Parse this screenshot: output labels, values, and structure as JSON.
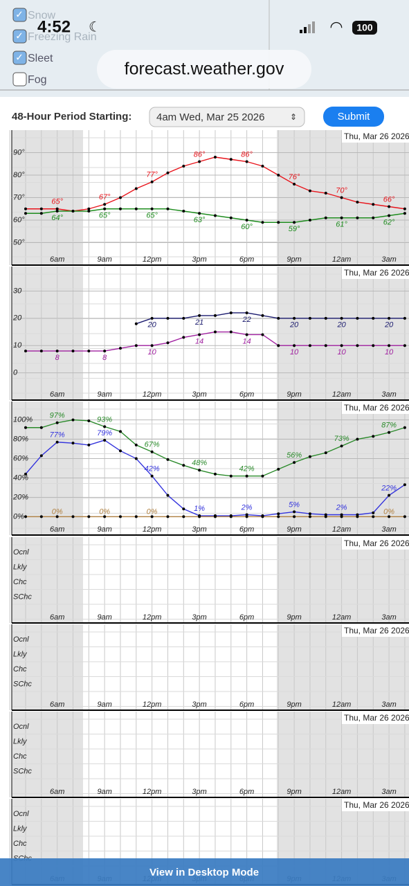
{
  "status_bar": {
    "time": "4:52",
    "battery": "100"
  },
  "address_bar": {
    "url": "forecast.weather.gov"
  },
  "checkboxes": [
    {
      "label": "Snow",
      "checked": true
    },
    {
      "label": "Freezing Rain",
      "checked": true
    },
    {
      "label": "Sleet",
      "checked": true
    },
    {
      "label": "Fog",
      "checked": false
    }
  ],
  "form": {
    "label": "48-Hour Period Starting:",
    "select": "4am Wed, Mar 25 2026",
    "button": "Submit"
  },
  "time_axis": {
    "header": "Thu, Mar 26 2026",
    "categories": [
      null,
      null,
      "6am",
      null,
      null,
      "9am",
      null,
      null,
      "12pm",
      null,
      null,
      "3pm",
      null,
      null,
      "6pm",
      null,
      null,
      "9pm",
      null,
      null,
      "12am",
      null,
      null,
      "3am",
      null
    ]
  },
  "panels": [
    {
      "type": "line",
      "ylim": [
        40,
        100
      ],
      "yticks": [
        {
          "value": 50,
          "label": "50°"
        },
        {
          "value": 60,
          "label": "60°"
        },
        {
          "value": 70,
          "label": "70°"
        },
        {
          "value": 80,
          "label": "80°"
        },
        {
          "value": 90,
          "label": "90°"
        }
      ],
      "series": [
        {
          "color": "#e8141b",
          "values": [
            65,
            65,
            65,
            64,
            65,
            67,
            70,
            74,
            77,
            81,
            84,
            86,
            88,
            87,
            86,
            84,
            80,
            76,
            73,
            72,
            70,
            68,
            67,
            66,
            65
          ],
          "value_labels": [
            null,
            null,
            "65°",
            null,
            null,
            "67°",
            null,
            null,
            "77°",
            null,
            null,
            "86°",
            null,
            null,
            "86°",
            null,
            null,
            "76°",
            null,
            null,
            "70°",
            null,
            null,
            "66°",
            null
          ]
        },
        {
          "color": "#1e8c1e",
          "values": [
            63,
            63,
            64,
            64,
            64,
            65,
            65,
            65,
            65,
            65,
            64,
            63,
            62,
            61,
            60,
            59,
            59,
            59,
            60,
            61,
            61,
            61,
            61,
            62,
            63
          ],
          "value_labels": [
            null,
            null,
            "64°",
            null,
            null,
            "65°",
            null,
            null,
            "65°",
            null,
            null,
            "63°",
            null,
            null,
            "60°",
            null,
            null,
            "59°",
            null,
            null,
            "61°",
            null,
            null,
            "62°",
            null
          ]
        }
      ]
    },
    {
      "type": "line",
      "ylim": [
        -10,
        39
      ],
      "yticks": [
        0,
        10,
        20,
        30
      ],
      "series": [
        {
          "color": "#1a1a6e",
          "values": [
            null,
            null,
            null,
            null,
            null,
            null,
            null,
            18,
            20,
            20,
            20,
            21,
            21,
            22,
            22,
            21,
            20,
            20,
            20,
            20,
            20,
            20,
            20,
            20,
            20
          ]
        },
        {
          "color": "#a020a0",
          "values": [
            8,
            8,
            8,
            8,
            8,
            8,
            9,
            10,
            10,
            11,
            13,
            14,
            15,
            15,
            14,
            14,
            10,
            10,
            10,
            10,
            10,
            10,
            10,
            10,
            10
          ]
        }
      ]
    },
    {
      "type": "line",
      "ylim": [
        -19,
        119
      ],
      "yticks": [
        {
          "value": 0,
          "label": "0%"
        },
        {
          "value": 20,
          "label": "20%"
        },
        {
          "value": 40,
          "label": "40%"
        },
        {
          "value": 60,
          "label": "60%"
        },
        {
          "value": 80,
          "label": "80%"
        },
        {
          "value": 100,
          "label": "100%"
        }
      ],
      "series": [
        {
          "color": "#2a8a2a",
          "values": [
            92,
            92,
            97,
            100,
            99,
            93,
            88,
            74,
            67,
            59,
            53,
            48,
            44,
            42,
            42,
            42,
            49,
            56,
            62,
            66,
            73,
            80,
            83,
            87,
            92
          ],
          "value_labels": [
            null,
            null,
            "97%",
            null,
            null,
            "93%",
            null,
            null,
            "67%",
            null,
            null,
            "48%",
            null,
            null,
            "42%",
            null,
            null,
            "56%",
            null,
            null,
            "73%",
            null,
            null,
            "87%",
            null
          ]
        },
        {
          "color": "#3333dd",
          "values": [
            44,
            63,
            77,
            76,
            74,
            79,
            68,
            60,
            42,
            22,
            8,
            1,
            1,
            1,
            2,
            1,
            3,
            5,
            3,
            2,
            2,
            2,
            4,
            22,
            33
          ],
          "value_labels": [
            null,
            null,
            "77%",
            null,
            null,
            "79%",
            null,
            null,
            "42%",
            null,
            null,
            "1%",
            null,
            null,
            "2%",
            null,
            null,
            "5%",
            null,
            null,
            "2%",
            null,
            null,
            "22%",
            null
          ]
        },
        {
          "color": "#b08040",
          "values": [
            0,
            0,
            0,
            0,
            0,
            0,
            0,
            0,
            0,
            0,
            0,
            0,
            0,
            0,
            0,
            0,
            0,
            0,
            0,
            0,
            0,
            0,
            0,
            0,
            0
          ],
          "value_labels": [
            null,
            null,
            "0%",
            null,
            null,
            "0%",
            null,
            null,
            "0%",
            null,
            null,
            null,
            null,
            null,
            null,
            null,
            null,
            null,
            null,
            null,
            null,
            null,
            null,
            "0%",
            null
          ]
        }
      ]
    },
    {
      "type": "levels",
      "levels": [
        "Ocnl",
        "Lkly",
        "Chc",
        "SChc"
      ]
    },
    {
      "type": "levels",
      "levels": [
        "Ocnl",
        "Lkly",
        "Chc",
        "SChc"
      ]
    },
    {
      "type": "levels",
      "levels": [
        "Ocnl",
        "Lkly",
        "Chc",
        "SChc"
      ]
    },
    {
      "type": "levels",
      "levels": [
        "Ocnl",
        "Lkly",
        "Chc",
        "SChc"
      ]
    }
  ],
  "footer": {
    "button": "View in Desktop Mode"
  }
}
